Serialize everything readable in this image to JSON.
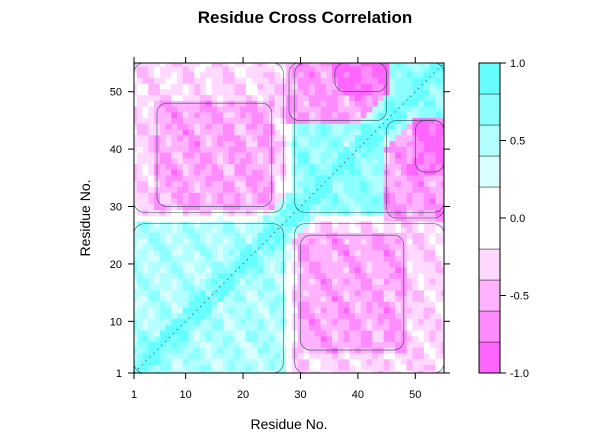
{
  "chart_data": {
    "type": "heatmap",
    "title": "Residue Cross Correlation",
    "xlabel": "Residue No.",
    "ylabel": "Residue No.",
    "xlim": [
      1,
      55
    ],
    "ylim": [
      1,
      55
    ],
    "x_ticks": [
      "1",
      "10",
      "20",
      "30",
      "40",
      "50"
    ],
    "y_ticks": [
      "1",
      "10",
      "20",
      "30",
      "40",
      "50"
    ],
    "colorbar": {
      "range": [
        -1.0,
        1.0
      ],
      "ticks": [
        "-1.0",
        "-0.5",
        "0.0",
        "0.5",
        "1.0"
      ],
      "levels": [
        {
          "from": -1.0,
          "to": -0.8,
          "color": "#ff66ff"
        },
        {
          "from": -0.8,
          "to": -0.6,
          "color": "#ff8cff"
        },
        {
          "from": -0.6,
          "to": -0.4,
          "color": "#ffb3ff"
        },
        {
          "from": -0.4,
          "to": -0.2,
          "color": "#ffd9ff"
        },
        {
          "from": -0.2,
          "to": 0.2,
          "color": "#ffffff"
        },
        {
          "from": 0.2,
          "to": 0.4,
          "color": "#d9ffff"
        },
        {
          "from": 0.4,
          "to": 0.6,
          "color": "#b3ffff"
        },
        {
          "from": 0.6,
          "to": 0.8,
          "color": "#8cffff"
        },
        {
          "from": 0.8,
          "to": 1.0,
          "color": "#66ffff"
        }
      ]
    },
    "blocks": [
      {
        "x": [
          1,
          27
        ],
        "y": [
          1,
          27
        ],
        "value": 0.5
      },
      {
        "x": [
          29,
          55
        ],
        "y": [
          29,
          55
        ],
        "value": 0.65
      },
      {
        "x": [
          29,
          55
        ],
        "y": [
          1,
          27
        ],
        "value": -0.3
      },
      {
        "x": [
          1,
          27
        ],
        "y": [
          29,
          55
        ],
        "value": -0.3
      },
      {
        "x": [
          5,
          25
        ],
        "y": [
          30,
          48
        ],
        "value": -0.55
      },
      {
        "x": [
          30,
          48
        ],
        "y": [
          5,
          25
        ],
        "value": -0.55
      },
      {
        "x": [
          28,
          45
        ],
        "y": [
          45,
          55
        ],
        "value": -0.6
      },
      {
        "x": [
          45,
          55
        ],
        "y": [
          28,
          45
        ],
        "value": -0.6
      },
      {
        "x": [
          50,
          55
        ],
        "y": [
          36,
          45
        ],
        "value": -0.85
      },
      {
        "x": [
          36,
          45
        ],
        "y": [
          50,
          55
        ],
        "value": -0.85
      }
    ]
  }
}
